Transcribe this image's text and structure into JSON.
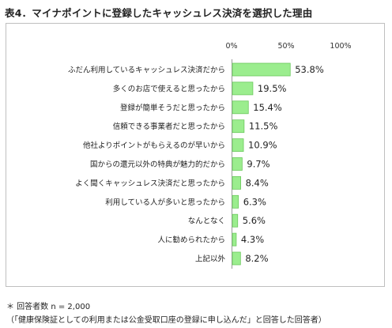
{
  "title": "表4．マイナポイントに登録したキャッシュレス決済を選択した理由",
  "chart_data": {
    "type": "bar",
    "orientation": "horizontal",
    "categories": [
      "ふだん利用しているキャッシュレス決済だから",
      "多くのお店で使えると思ったから",
      "登録が簡単そうだと思ったから",
      "信頼できる事業者だと思ったから",
      "他社よりポイントがもらえるのが早いから",
      "国からの還元以外の特典が魅力的だから",
      "よく聞くキャッシュレス決済だと思ったから",
      "利用している人が多いと思ったから",
      "なんとなく",
      "人に勧められたから",
      "上記以外"
    ],
    "values": [
      53.8,
      19.5,
      15.4,
      11.5,
      10.9,
      9.7,
      8.4,
      6.3,
      5.6,
      4.3,
      8.2
    ],
    "value_labels": [
      "53.8%",
      "19.5%",
      "15.4%",
      "11.5%",
      "10.9%",
      "9.7%",
      "8.4%",
      "6.3%",
      "5.6%",
      "4.3%",
      "8.2%"
    ],
    "xlim": [
      0,
      100
    ],
    "xticks": [
      0,
      50,
      100
    ],
    "xtick_labels": [
      "0%",
      "50%",
      "100%"
    ],
    "axis_position": "top",
    "grid": false,
    "legend": "none",
    "bar_color": "#9bed8e",
    "bar_border_color": "#6cc95e"
  },
  "notes": [
    "＊ 回答者数 n = 2,000",
    "（「健康保険証としての利用または公金受取口座の登録に申し込んだ」と回答した回答者）"
  ]
}
